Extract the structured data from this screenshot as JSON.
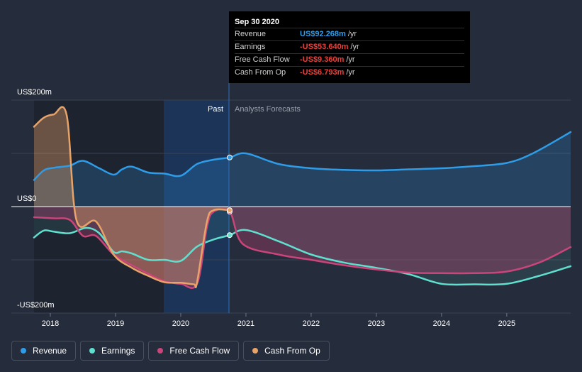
{
  "tooltip": {
    "date": "Sep 30 2020",
    "rows": [
      {
        "label": "Revenue",
        "value": "US$92.268m",
        "unit": "/yr",
        "color": "#2f9ce8"
      },
      {
        "label": "Earnings",
        "value": "-US$53.640m",
        "unit": "/yr",
        "color": "#e8403c"
      },
      {
        "label": "Free Cash Flow",
        "value": "-US$9.360m",
        "unit": "/yr",
        "color": "#e8403c"
      },
      {
        "label": "Cash From Op",
        "value": "-US$6.793m",
        "unit": "/yr",
        "color": "#e8403c"
      }
    ]
  },
  "legend": [
    {
      "label": "Revenue",
      "color": "#2f9ce8"
    },
    {
      "label": "Earnings",
      "color": "#5fe0cf"
    },
    {
      "label": "Free Cash Flow",
      "color": "#c9457a"
    },
    {
      "label": "Cash From Op",
      "color": "#e8a468"
    }
  ],
  "chart_data": {
    "type": "line",
    "ylabels": [
      "US$200m",
      "US$0",
      "-US$200m"
    ],
    "ylim": [
      -200,
      200
    ],
    "xlim": [
      2017.75,
      2025.98
    ],
    "x_ticks": [
      "2018",
      "2019",
      "2020",
      "2021",
      "2022",
      "2023",
      "2024",
      "2025"
    ],
    "regions": {
      "past_label": "Past",
      "forecast_label": "Analysts Forecasts",
      "divider_x": 2020.75
    },
    "series": [
      {
        "name": "Revenue",
        "color": "#2f9ce8",
        "points": [
          [
            2017.75,
            50
          ],
          [
            2017.9,
            68
          ],
          [
            2018.05,
            73
          ],
          [
            2018.3,
            77
          ],
          [
            2018.5,
            86
          ],
          [
            2018.75,
            72
          ],
          [
            2018.97,
            60
          ],
          [
            2019.1,
            70
          ],
          [
            2019.25,
            75
          ],
          [
            2019.5,
            64
          ],
          [
            2019.75,
            62
          ],
          [
            2020.0,
            58
          ],
          [
            2020.25,
            80
          ],
          [
            2020.5,
            88
          ],
          [
            2020.75,
            92.268
          ],
          [
            2021.0,
            100
          ],
          [
            2021.5,
            80
          ],
          [
            2022.0,
            72
          ],
          [
            2022.5,
            69
          ],
          [
            2023.0,
            68
          ],
          [
            2023.5,
            70
          ],
          [
            2024.0,
            72
          ],
          [
            2024.5,
            76
          ],
          [
            2025.0,
            82
          ],
          [
            2025.4,
            100
          ],
          [
            2025.98,
            140
          ]
        ]
      },
      {
        "name": "Earnings",
        "color": "#5fe0cf",
        "points": [
          [
            2017.75,
            -58
          ],
          [
            2017.9,
            -45
          ],
          [
            2018.05,
            -47
          ],
          [
            2018.3,
            -50
          ],
          [
            2018.55,
            -40
          ],
          [
            2018.75,
            -50
          ],
          [
            2018.97,
            -85
          ],
          [
            2019.1,
            -84
          ],
          [
            2019.25,
            -88
          ],
          [
            2019.5,
            -100
          ],
          [
            2019.75,
            -100
          ],
          [
            2020.0,
            -102
          ],
          [
            2020.25,
            -75
          ],
          [
            2020.5,
            -62
          ],
          [
            2020.75,
            -53.64
          ],
          [
            2021.0,
            -44
          ],
          [
            2021.5,
            -65
          ],
          [
            2022.0,
            -90
          ],
          [
            2022.5,
            -105
          ],
          [
            2023.0,
            -115
          ],
          [
            2023.5,
            -127
          ],
          [
            2024.0,
            -145
          ],
          [
            2024.5,
            -146
          ],
          [
            2025.0,
            -145
          ],
          [
            2025.5,
            -130
          ],
          [
            2025.98,
            -112
          ]
        ]
      },
      {
        "name": "Free Cash Flow",
        "color": "#c9457a",
        "points": [
          [
            2017.75,
            -20
          ],
          [
            2018.05,
            -22
          ],
          [
            2018.3,
            -25
          ],
          [
            2018.5,
            -55
          ],
          [
            2018.7,
            -55
          ],
          [
            2018.97,
            -90
          ],
          [
            2019.25,
            -110
          ],
          [
            2019.5,
            -126
          ],
          [
            2019.75,
            -140
          ],
          [
            2020.0,
            -145
          ],
          [
            2020.25,
            -145
          ],
          [
            2020.4,
            -40
          ],
          [
            2020.5,
            -10
          ],
          [
            2020.75,
            -9.36
          ],
          [
            2020.95,
            -70
          ],
          [
            2021.5,
            -90
          ],
          [
            2022.0,
            -100
          ],
          [
            2022.5,
            -110
          ],
          [
            2023.0,
            -118
          ],
          [
            2023.5,
            -124
          ],
          [
            2024.0,
            -125
          ],
          [
            2024.5,
            -125
          ],
          [
            2025.0,
            -122
          ],
          [
            2025.5,
            -105
          ],
          [
            2025.98,
            -76
          ]
        ]
      },
      {
        "name": "Cash From Op",
        "color": "#e8a468",
        "points": [
          [
            2017.75,
            150
          ],
          [
            2017.9,
            167
          ],
          [
            2018.05,
            173
          ],
          [
            2018.25,
            172
          ],
          [
            2018.4,
            -25
          ],
          [
            2018.7,
            -28
          ],
          [
            2018.97,
            -90
          ],
          [
            2019.25,
            -115
          ],
          [
            2019.5,
            -130
          ],
          [
            2019.75,
            -142
          ],
          [
            2020.0,
            -143
          ],
          [
            2020.2,
            -146
          ],
          [
            2020.25,
            -142
          ],
          [
            2020.4,
            -30
          ],
          [
            2020.5,
            -7
          ],
          [
            2020.75,
            -6.793
          ]
        ]
      }
    ]
  }
}
